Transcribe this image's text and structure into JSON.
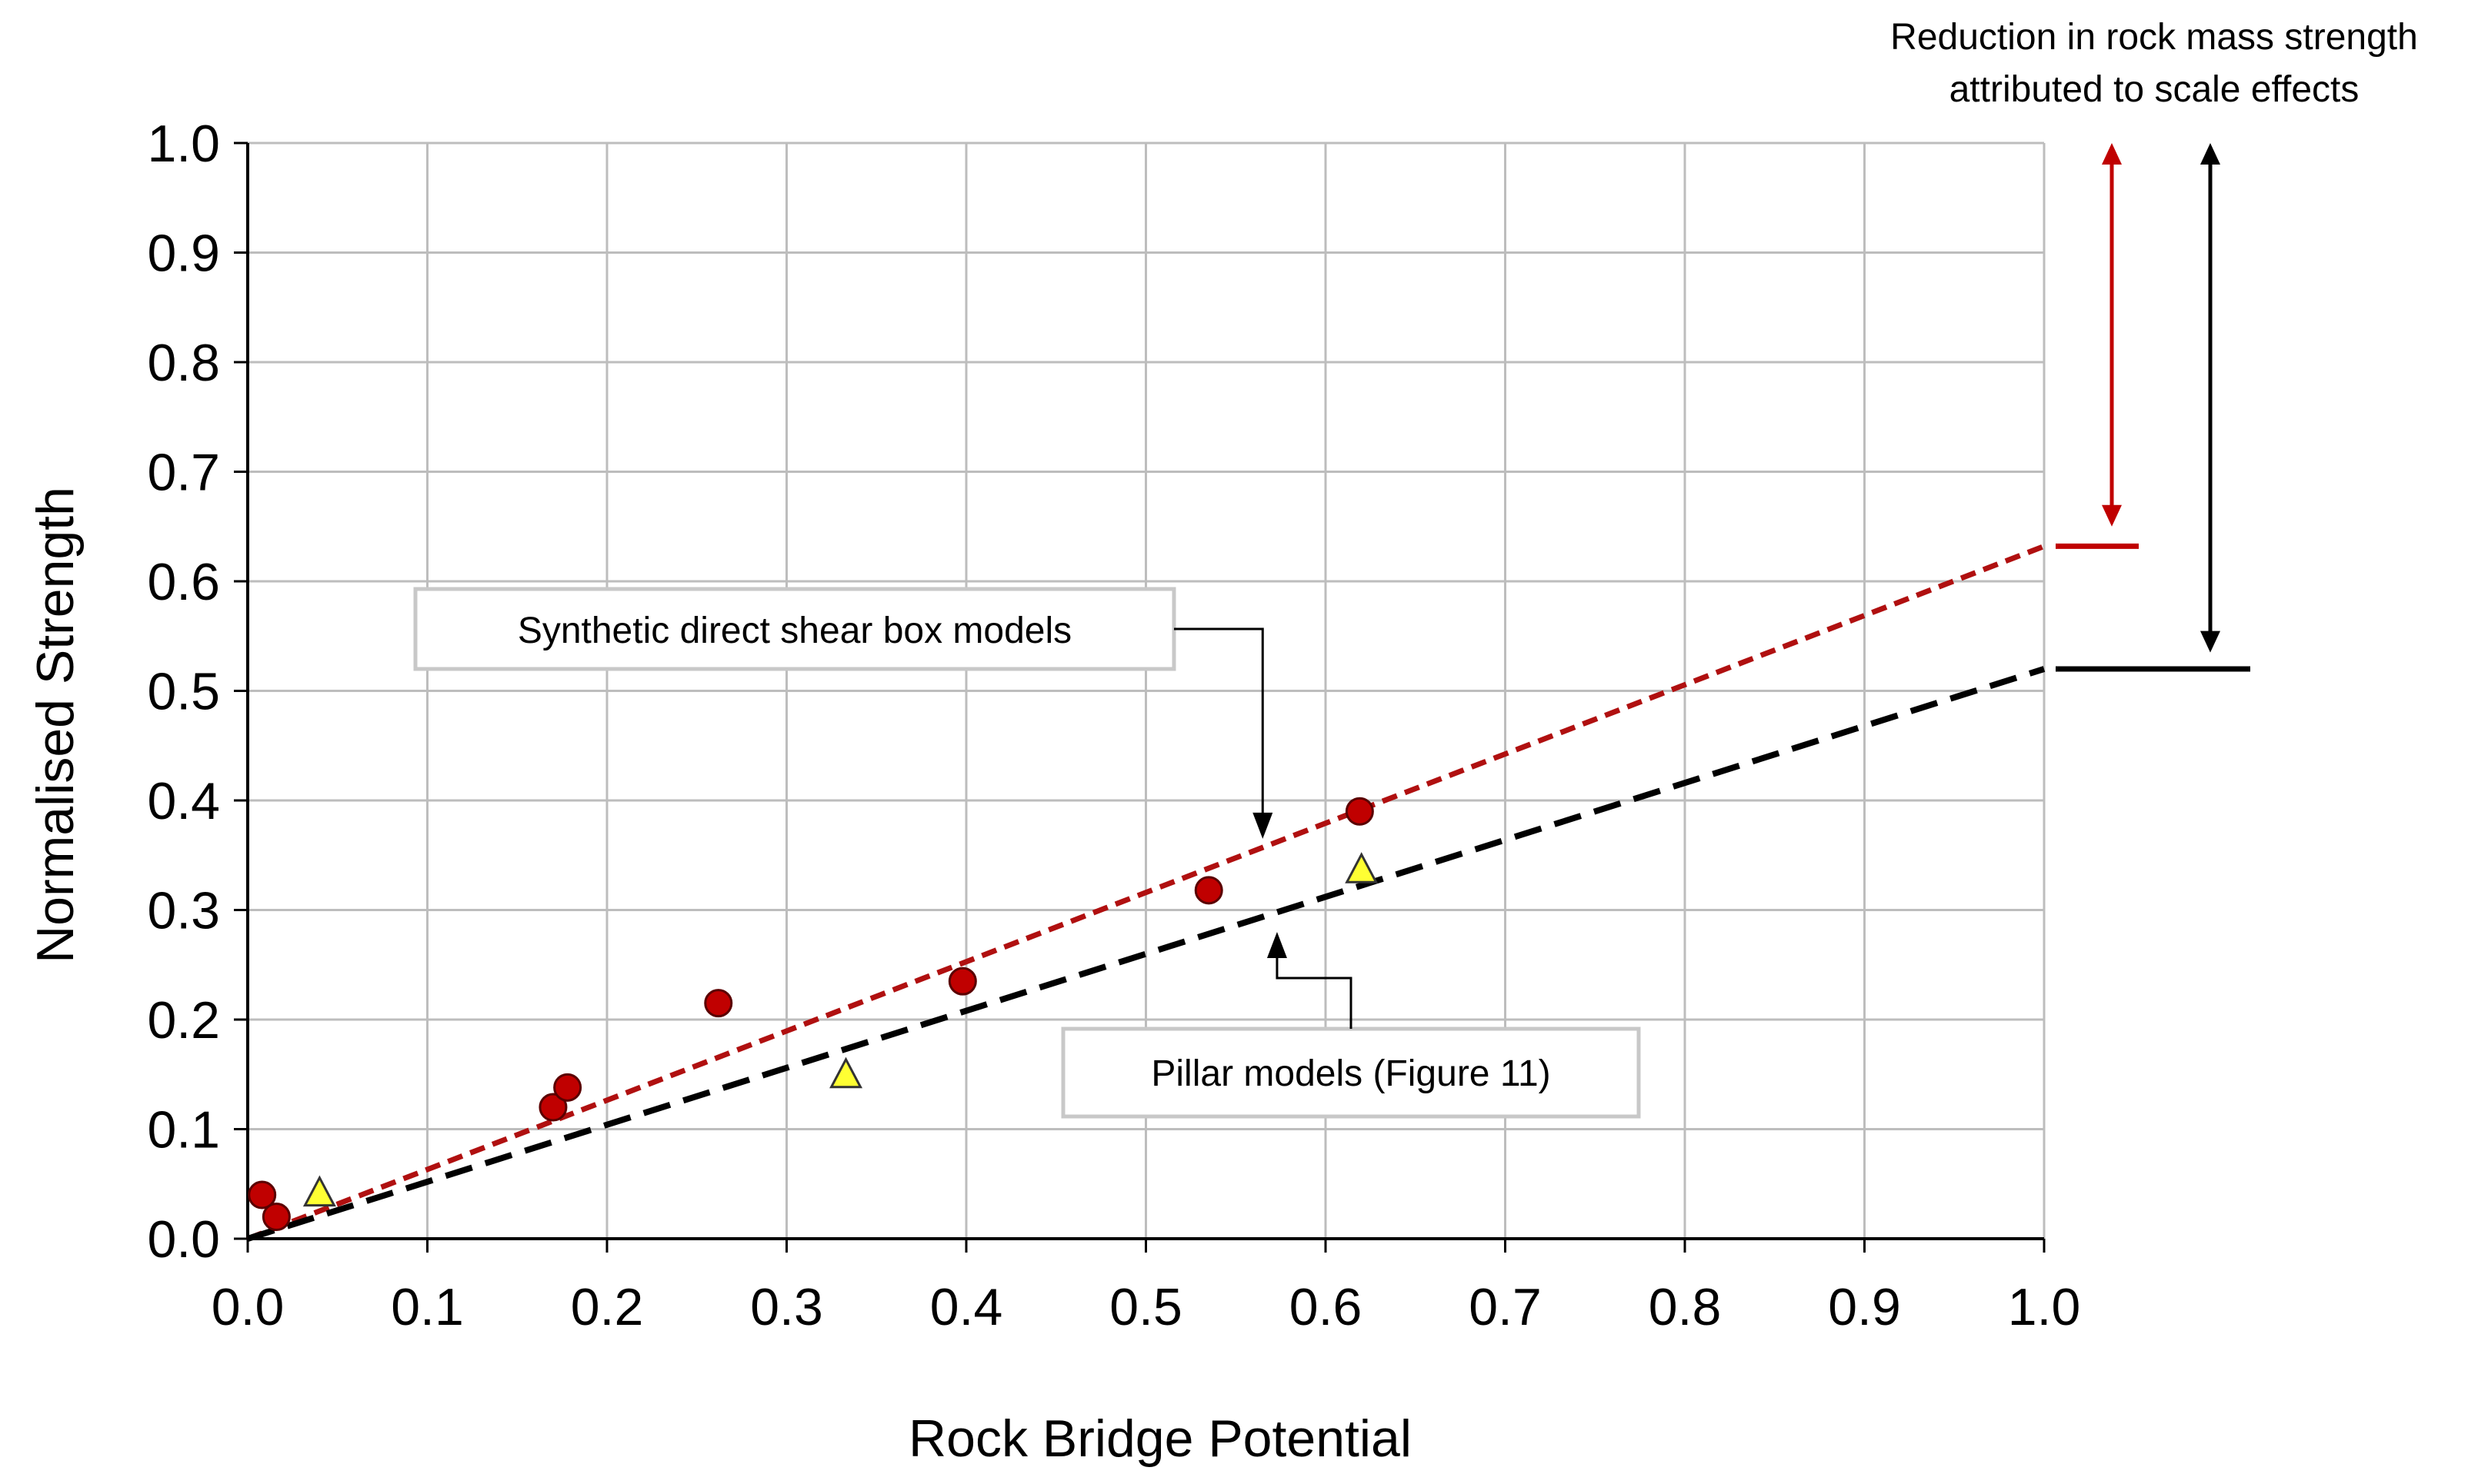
{
  "chart_data": {
    "type": "scatter",
    "title": "",
    "xlabel": "Rock Bridge Potential",
    "ylabel": "Normalised Strength",
    "xlim": [
      0.0,
      1.0
    ],
    "ylim": [
      0.0,
      1.0
    ],
    "x_ticks": [
      "0.0",
      "0.1",
      "0.2",
      "0.3",
      "0.4",
      "0.5",
      "0.6",
      "0.7",
      "0.8",
      "0.9",
      "1.0"
    ],
    "y_ticks": [
      "0.0",
      "0.1",
      "0.2",
      "0.3",
      "0.4",
      "0.5",
      "0.6",
      "0.7",
      "0.8",
      "0.9",
      "1.0"
    ],
    "grid": true,
    "legend": "none",
    "series": [
      {
        "marker": "circle",
        "color": "#c00000",
        "points": [
          {
            "x": 0.008,
            "y": 0.04
          },
          {
            "x": 0.016,
            "y": 0.02
          },
          {
            "x": 0.17,
            "y": 0.12
          },
          {
            "x": 0.178,
            "y": 0.138
          },
          {
            "x": 0.262,
            "y": 0.215
          },
          {
            "x": 0.398,
            "y": 0.235
          },
          {
            "x": 0.535,
            "y": 0.318
          },
          {
            "x": 0.619,
            "y": 0.39
          }
        ]
      },
      {
        "marker": "triangle",
        "color": "#ffff33",
        "points": [
          {
            "x": 0.04,
            "y": 0.04
          },
          {
            "x": 0.333,
            "y": 0.148
          },
          {
            "x": 0.62,
            "y": 0.335
          }
        ]
      }
    ],
    "trend_lines": [
      {
        "color": "#b01010",
        "style": "dashed",
        "x": [
          0.0,
          1.0
        ],
        "y": [
          0.0,
          0.632
        ]
      },
      {
        "color": "#000000",
        "style": "dashed",
        "x": [
          0.0,
          1.0
        ],
        "y": [
          0.0,
          0.52
        ]
      }
    ],
    "annotations": [
      {
        "id": "synthetic",
        "text": "Synthetic direct shear box models",
        "points_to": {
          "x": 0.565,
          "y": 0.365
        }
      },
      {
        "id": "pillar",
        "text": "Pillar models (Figure 11)",
        "points_to": {
          "x": 0.573,
          "y": 0.28
        }
      },
      {
        "id": "reduction",
        "lines": [
          "Reduction in rock mass strength",
          "attributed to scale effects"
        ]
      }
    ],
    "scale_markers": [
      {
        "color": "#c00000",
        "y_level": 0.632,
        "arrow_from": 1.0,
        "arrow_to": 0.65
      },
      {
        "color": "#000000",
        "y_level": 0.52,
        "arrow_from": 1.0,
        "arrow_to": 0.535
      }
    ]
  }
}
